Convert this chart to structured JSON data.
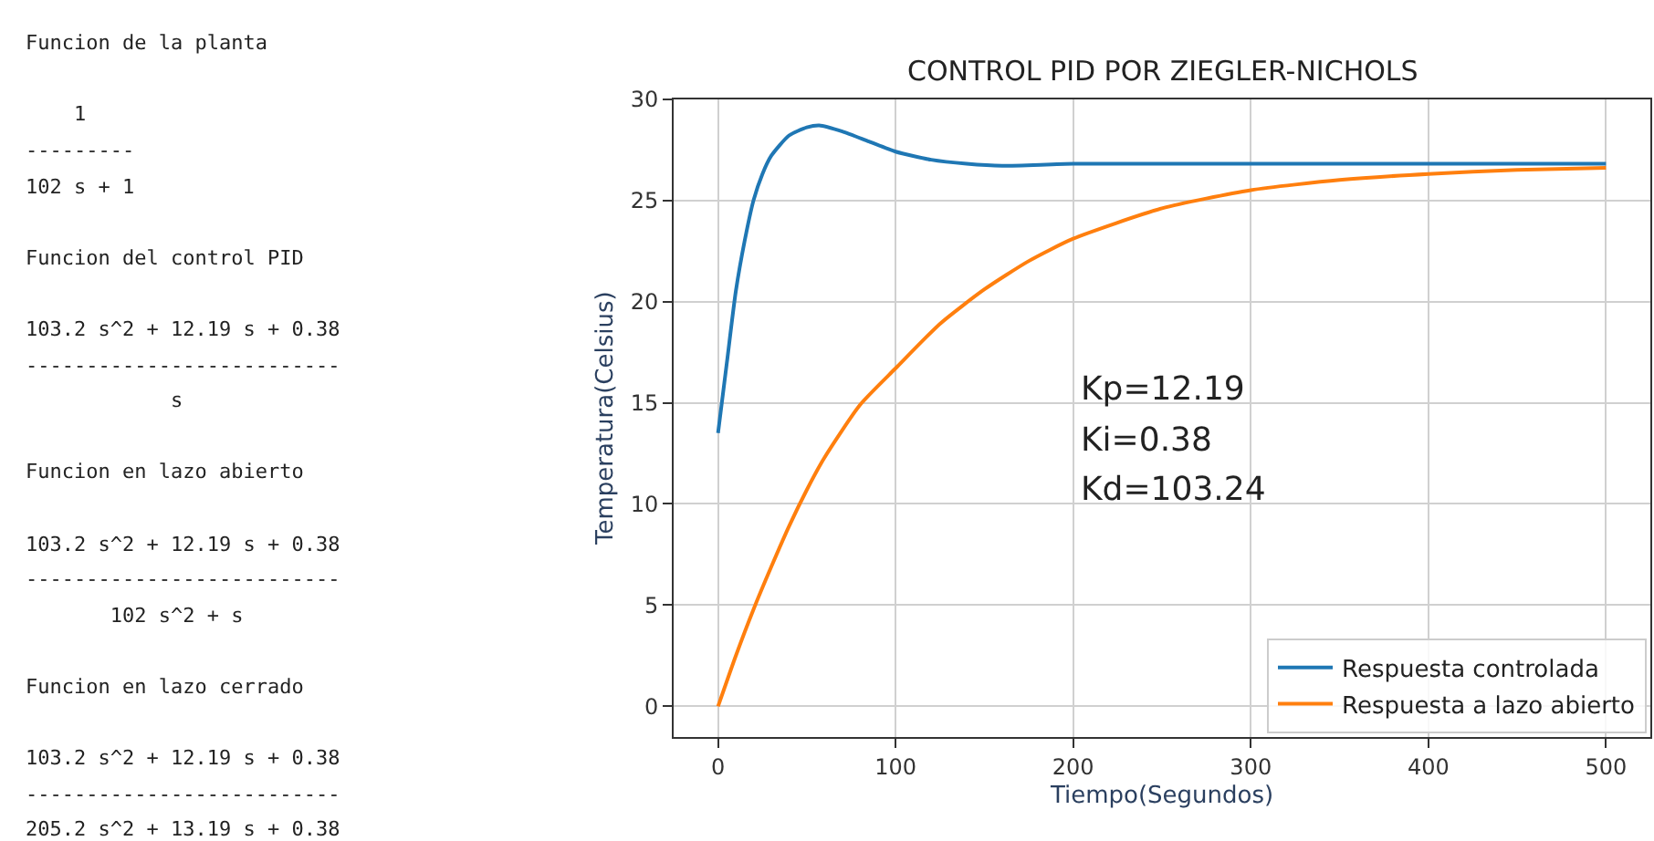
{
  "chart_data": [
    {
      "type": "other",
      "annotations": [
        "Funcion de la planta\n\n    1\n---------\n102 s + 1\n\nFuncion del control PID\n\n103.2 s^2 + 12.19 s + 0.38\n--------------------------\n            s\n\nFuncion en lazo abierto\n\n103.2 s^2 + 12.19 s + 0.38\n--------------------------\n       102 s^2 + s\n\nFuncion en lazo cerrado\n\n103.2 s^2 + 12.19 s + 0.38\n--------------------------\n205.2 s^2 + 13.19 s + 0.38"
      ]
    },
    {
      "type": "line",
      "title": "CONTROL PID POR ZIEGLER-NICHOLS",
      "xlabel": "Tiempo(Segundos)",
      "ylabel": "Temperatura(Celsius)",
      "xlim": [
        -25,
        525
      ],
      "xticks": [
        0,
        100,
        200,
        300,
        400,
        500
      ],
      "ylim": [
        -1.5,
        30
      ],
      "yticks": [
        0,
        5,
        10,
        15,
        20,
        25,
        30
      ],
      "grid": true,
      "legend": "bottom right",
      "annotations": [
        "Kp=12.19",
        "Ki=0.38",
        "Kd=103.24"
      ],
      "series": [
        {
          "name": "Respuesta controlada",
          "color": "#1f77b4",
          "x": [
            0,
            5,
            10,
            15,
            20,
            25,
            30,
            40,
            50,
            57,
            70,
            85,
            100,
            120,
            140,
            160,
            200,
            300,
            400,
            500
          ],
          "values": [
            13.5,
            17,
            20.5,
            23,
            25,
            26.3,
            27.2,
            28.2,
            28.6,
            28.7,
            28.4,
            27.9,
            27.4,
            27.0,
            26.8,
            26.7,
            26.8,
            26.8,
            26.8,
            26.8
          ]
        },
        {
          "name": "Respuesta a lazo abierto",
          "color": "#ff7f0e",
          "x": [
            0,
            10,
            20,
            30,
            40,
            50,
            60,
            80,
            100,
            125,
            150,
            175,
            200,
            250,
            300,
            350,
            400,
            450,
            500
          ],
          "values": [
            0,
            2.5,
            4.8,
            6.9,
            8.9,
            10.7,
            12.3,
            14.9,
            16.7,
            18.9,
            20.6,
            22.0,
            23.1,
            24.6,
            25.5,
            26.0,
            26.3,
            26.5,
            26.6
          ]
        }
      ]
    }
  ]
}
